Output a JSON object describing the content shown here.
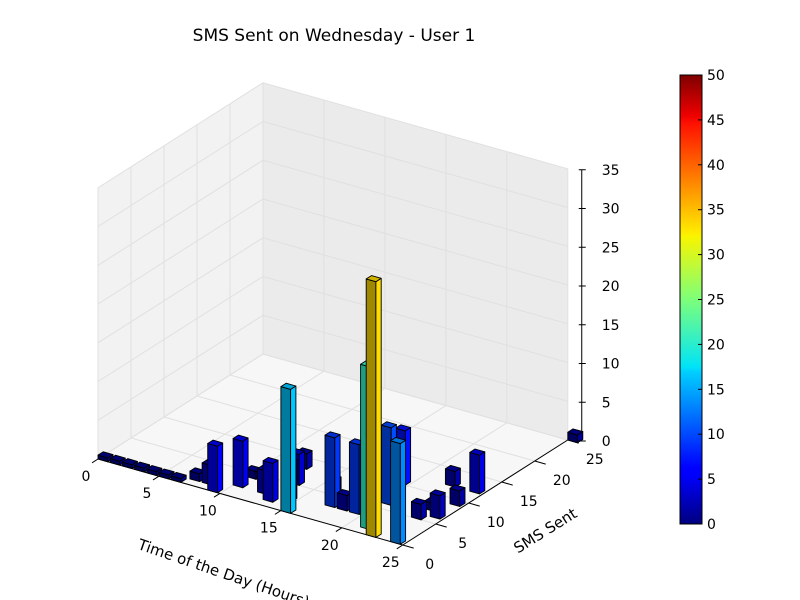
{
  "chart_data": {
    "type": "bar3d",
    "title": "SMS Sent on Wednesday - User 1",
    "xlabel": "Time of the Day (Hours)",
    "ylabel": "SMS Sent",
    "zlabel": "",
    "xlim": [
      0,
      25
    ],
    "ylim": [
      0,
      25
    ],
    "zlim": [
      0,
      35
    ],
    "x_ticks": [
      "0",
      "5",
      "10",
      "15",
      "20",
      "25"
    ],
    "y_ticks": [
      "0",
      "5",
      "10",
      "15",
      "20",
      "25"
    ],
    "z_ticks": [
      "0",
      "5",
      "10",
      "15",
      "20",
      "25",
      "30",
      "35"
    ],
    "colorbar": {
      "colormap": "jet",
      "range": [
        0,
        50
      ],
      "ticks": [
        "0",
        "5",
        "10",
        "15",
        "20",
        "25",
        "30",
        "35",
        "40",
        "45",
        "50"
      ]
    },
    "grid": true,
    "bars": [
      {
        "x": 0,
        "y": 0,
        "z": 0.5
      },
      {
        "x": 1,
        "y": 0,
        "z": 0.5
      },
      {
        "x": 2,
        "y": 0,
        "z": 0.5
      },
      {
        "x": 3,
        "y": 0,
        "z": 0.5
      },
      {
        "x": 4,
        "y": 0,
        "z": 0.5
      },
      {
        "x": 5,
        "y": 0,
        "z": 0.5
      },
      {
        "x": 6,
        "y": 0,
        "z": 0.5
      },
      {
        "x": 7,
        "y": 1,
        "z": 1
      },
      {
        "x": 8,
        "y": 1,
        "z": 2.5
      },
      {
        "x": 9,
        "y": 0,
        "z": 6
      },
      {
        "x": 10,
        "y": 4,
        "z": 1
      },
      {
        "x": 10,
        "y": 2,
        "z": 6
      },
      {
        "x": 12,
        "y": 8,
        "z": 2
      },
      {
        "x": 12,
        "y": 2,
        "z": 3
      },
      {
        "x": 13,
        "y": 1,
        "z": 5
      },
      {
        "x": 13,
        "y": 5,
        "z": 4
      },
      {
        "x": 14,
        "y": 2,
        "z": 5
      },
      {
        "x": 15,
        "y": 0,
        "z": 16
      },
      {
        "x": 16,
        "y": 5,
        "z": 2
      },
      {
        "x": 17,
        "y": 3,
        "z": 9
      },
      {
        "x": 18,
        "y": 3,
        "z": 2
      },
      {
        "x": 19,
        "y": 3,
        "z": 9
      },
      {
        "x": 19,
        "y": 10,
        "z": 7
      },
      {
        "x": 20,
        "y": 6,
        "z": 10
      },
      {
        "x": 21,
        "y": 1,
        "z": 21
      },
      {
        "x": 22,
        "y": 0,
        "z": 33
      },
      {
        "x": 22,
        "y": 12,
        "z": 2
      },
      {
        "x": 23,
        "y": 5,
        "z": 2
      },
      {
        "x": 23,
        "y": 7,
        "z": 1
      },
      {
        "x": 24,
        "y": 0,
        "z": 13
      },
      {
        "x": 24,
        "y": 6,
        "z": 3
      },
      {
        "x": 24,
        "y": 9,
        "z": 2
      },
      {
        "x": 24,
        "y": 12,
        "z": 5
      },
      {
        "x": 25,
        "y": 25,
        "z": 1
      }
    ]
  }
}
